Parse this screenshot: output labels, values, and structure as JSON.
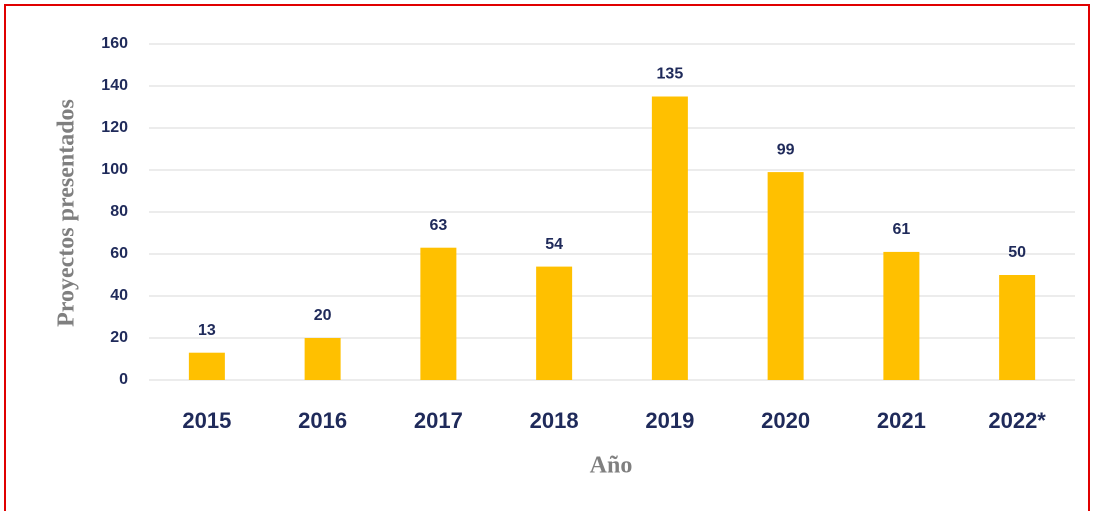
{
  "chart_data": {
    "type": "bar",
    "x_label": "Año",
    "y_label": "Proyectos presentados",
    "categories": [
      "2015",
      "2016",
      "2017",
      "2018",
      "2019",
      "2020",
      "2021",
      "2022*"
    ],
    "values": [
      13,
      20,
      63,
      54,
      135,
      99,
      61,
      50
    ],
    "color": "#ffc000",
    "ylim": [
      0,
      160
    ],
    "yticks": [
      0,
      20,
      40,
      60,
      80,
      100,
      120,
      140,
      160
    ],
    "grid": true
  }
}
